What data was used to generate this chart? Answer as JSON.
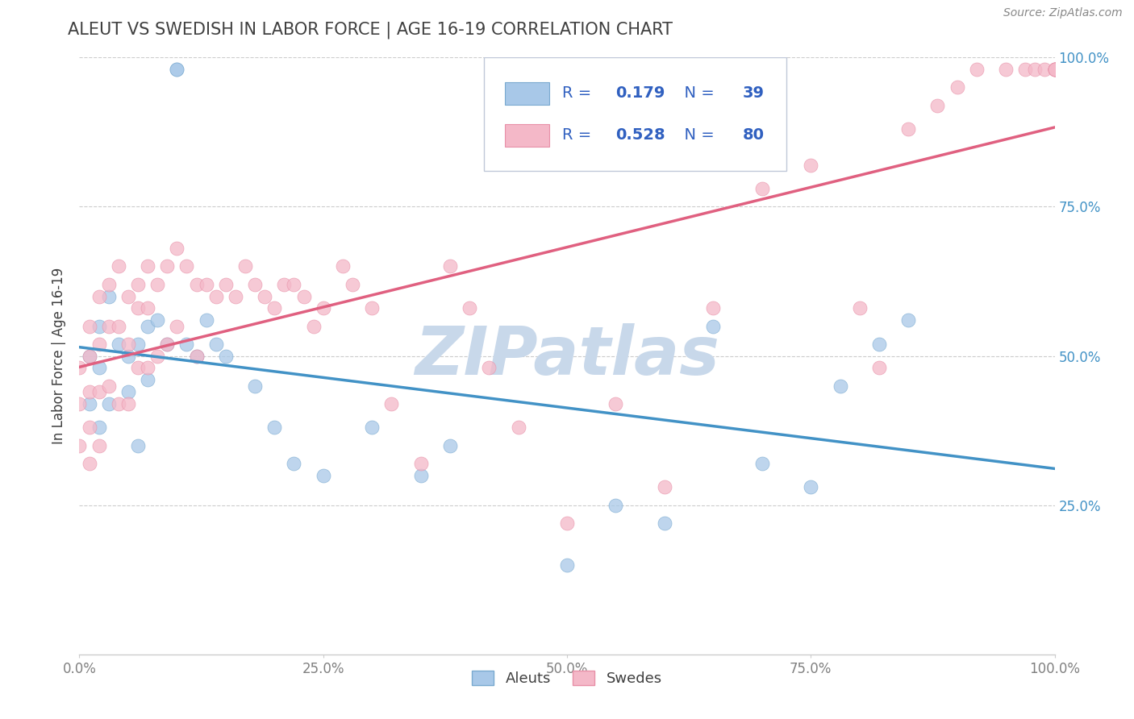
{
  "title": "ALEUT VS SWEDISH IN LABOR FORCE | AGE 16-19 CORRELATION CHART",
  "source": "Source: ZipAtlas.com",
  "ylabel": "In Labor Force | Age 16-19",
  "xlim": [
    0.0,
    1.0
  ],
  "ylim": [
    0.0,
    1.0
  ],
  "ytick_positions": [
    0.25,
    0.5,
    0.75,
    1.0
  ],
  "ytick_labels": [
    "25.0%",
    "50.0%",
    "75.0%",
    "100.0%"
  ],
  "xtick_positions": [
    0.0,
    0.25,
    0.5,
    0.75,
    1.0
  ],
  "xtick_labels": [
    "0.0%",
    "25.0%",
    "50.0%",
    "75.0%",
    "100.0%"
  ],
  "aleut_R": 0.179,
  "aleut_N": 39,
  "swedish_R": 0.528,
  "swedish_N": 80,
  "aleut_color": "#a8c8e8",
  "swedish_color": "#f4b8c8",
  "aleut_edge_color": "#7aaad0",
  "swedish_edge_color": "#e890a8",
  "aleut_line_color": "#4292c6",
  "swedish_line_color": "#e06080",
  "background_color": "#ffffff",
  "grid_color": "#cccccc",
  "watermark": "ZIPatlas",
  "watermark_color": "#c8d8ea",
  "legend_text_color": "#3060c0",
  "title_color": "#404040",
  "axis_label_color": "#404040",
  "tick_color": "#808080",
  "right_tick_color": "#4292c6",
  "aleut_x": [
    0.01,
    0.01,
    0.02,
    0.02,
    0.02,
    0.03,
    0.03,
    0.04,
    0.05,
    0.05,
    0.06,
    0.06,
    0.07,
    0.07,
    0.08,
    0.09,
    0.1,
    0.1,
    0.11,
    0.12,
    0.13,
    0.14,
    0.15,
    0.18,
    0.2,
    0.22,
    0.25,
    0.3,
    0.35,
    0.38,
    0.5,
    0.55,
    0.6,
    0.65,
    0.7,
    0.75,
    0.78,
    0.82,
    0.85
  ],
  "aleut_y": [
    0.5,
    0.42,
    0.55,
    0.48,
    0.38,
    0.6,
    0.42,
    0.52,
    0.5,
    0.44,
    0.52,
    0.35,
    0.55,
    0.46,
    0.56,
    0.52,
    0.98,
    0.98,
    0.52,
    0.5,
    0.56,
    0.52,
    0.5,
    0.45,
    0.38,
    0.32,
    0.3,
    0.38,
    0.3,
    0.35,
    0.15,
    0.25,
    0.22,
    0.55,
    0.32,
    0.28,
    0.45,
    0.52,
    0.56
  ],
  "swedish_x": [
    0.0,
    0.0,
    0.0,
    0.01,
    0.01,
    0.01,
    0.01,
    0.01,
    0.02,
    0.02,
    0.02,
    0.02,
    0.03,
    0.03,
    0.03,
    0.04,
    0.04,
    0.04,
    0.05,
    0.05,
    0.05,
    0.06,
    0.06,
    0.06,
    0.07,
    0.07,
    0.07,
    0.08,
    0.08,
    0.09,
    0.09,
    0.1,
    0.1,
    0.11,
    0.12,
    0.12,
    0.13,
    0.14,
    0.15,
    0.16,
    0.17,
    0.18,
    0.19,
    0.2,
    0.21,
    0.22,
    0.23,
    0.24,
    0.25,
    0.27,
    0.28,
    0.3,
    0.32,
    0.35,
    0.38,
    0.4,
    0.42,
    0.45,
    0.5,
    0.55,
    0.6,
    0.65,
    0.7,
    0.75,
    0.8,
    0.82,
    0.85,
    0.88,
    0.9,
    0.92,
    0.95,
    0.97,
    0.98,
    0.99,
    1.0,
    1.0,
    1.0,
    1.0,
    1.0,
    1.0
  ],
  "swedish_y": [
    0.48,
    0.42,
    0.35,
    0.55,
    0.5,
    0.44,
    0.38,
    0.32,
    0.6,
    0.52,
    0.44,
    0.35,
    0.62,
    0.55,
    0.45,
    0.65,
    0.55,
    0.42,
    0.6,
    0.52,
    0.42,
    0.62,
    0.58,
    0.48,
    0.65,
    0.58,
    0.48,
    0.62,
    0.5,
    0.65,
    0.52,
    0.68,
    0.55,
    0.65,
    0.62,
    0.5,
    0.62,
    0.6,
    0.62,
    0.6,
    0.65,
    0.62,
    0.6,
    0.58,
    0.62,
    0.62,
    0.6,
    0.55,
    0.58,
    0.65,
    0.62,
    0.58,
    0.42,
    0.32,
    0.65,
    0.58,
    0.48,
    0.38,
    0.22,
    0.42,
    0.28,
    0.58,
    0.78,
    0.82,
    0.58,
    0.48,
    0.88,
    0.92,
    0.95,
    0.98,
    0.98,
    0.98,
    0.98,
    0.98,
    0.98,
    0.98,
    0.98,
    0.98,
    0.98,
    0.98
  ]
}
